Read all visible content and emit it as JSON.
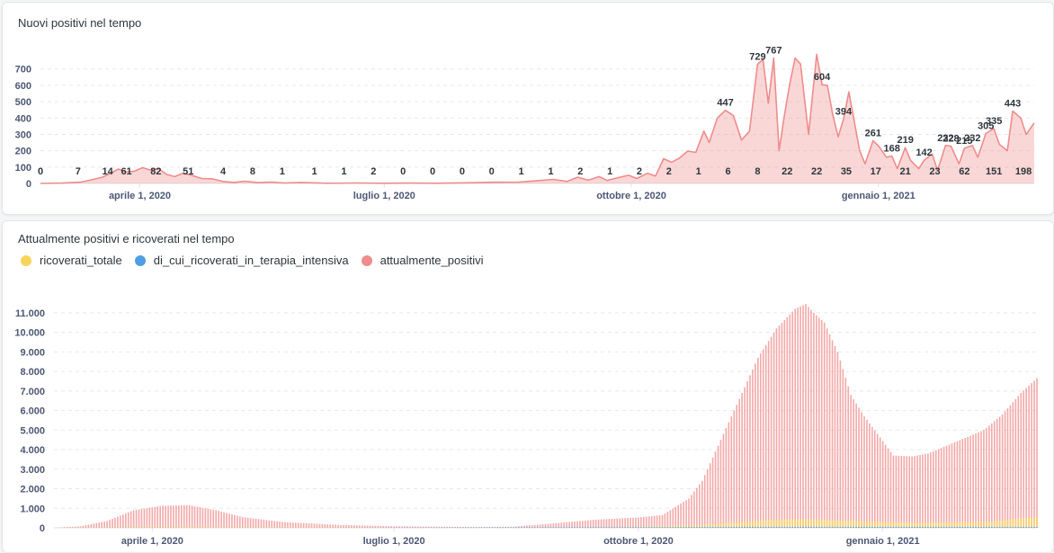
{
  "cards": [
    {
      "title": "Nuovi positivi nel tempo"
    },
    {
      "title": "Attualmente positivi e ricoverati nel tempo"
    }
  ],
  "colors": {
    "attualmente_positivi": "#ef8c8c",
    "ricoverati_totale": "#f9d45c",
    "di_cui_ricoverati_in_terapia_intensiva": "#509ee3",
    "grid": "#e6e8eb",
    "tick": "#4c5773"
  },
  "chart_data": [
    {
      "type": "area",
      "title": "Nuovi positivi nel tempo",
      "x_axis": {
        "type": "date",
        "range": [
          "2020-02-24",
          "2021-02-28"
        ],
        "ticks": [
          {
            "date": "2020-04-01",
            "label": "aprile 1, 2020"
          },
          {
            "date": "2020-07-01",
            "label": "luglio 1, 2020"
          },
          {
            "date": "2020-10-01",
            "label": "ottobre 1, 2020"
          },
          {
            "date": "2021-01-01",
            "label": "gennaio 1, 2021"
          }
        ]
      },
      "y_axis": {
        "range": [
          0,
          770
        ],
        "ticks": [
          0,
          100,
          200,
          300,
          400,
          500,
          600,
          700
        ]
      },
      "grid": "horizontal dashed",
      "series": [
        {
          "name": "nuovi_positivi",
          "color": "#ef8c8c",
          "points": [
            [
              "2020-02-24",
              0
            ],
            [
              "2020-03-03",
              2
            ],
            [
              "2020-03-10",
              8
            ],
            [
              "2020-03-14",
              22
            ],
            [
              "2020-03-18",
              38
            ],
            [
              "2020-03-21",
              61
            ],
            [
              "2020-03-24",
              88
            ],
            [
              "2020-03-27",
              70
            ],
            [
              "2020-03-30",
              75
            ],
            [
              "2020-04-02",
              96
            ],
            [
              "2020-04-05",
              82
            ],
            [
              "2020-04-08",
              90
            ],
            [
              "2020-04-11",
              55
            ],
            [
              "2020-04-14",
              42
            ],
            [
              "2020-04-17",
              62
            ],
            [
              "2020-04-20",
              51
            ],
            [
              "2020-04-24",
              30
            ],
            [
              "2020-04-28",
              28
            ],
            [
              "2020-05-02",
              12
            ],
            [
              "2020-05-06",
              6
            ],
            [
              "2020-05-10",
              14
            ],
            [
              "2020-05-15",
              5
            ],
            [
              "2020-05-20",
              8
            ],
            [
              "2020-05-25",
              3
            ],
            [
              "2020-05-31",
              6
            ],
            [
              "2020-06-10",
              1
            ],
            [
              "2020-06-20",
              3
            ],
            [
              "2020-07-01",
              1
            ],
            [
              "2020-07-10",
              2
            ],
            [
              "2020-07-20",
              1
            ],
            [
              "2020-08-01",
              4
            ],
            [
              "2020-08-10",
              7
            ],
            [
              "2020-08-20",
              8
            ],
            [
              "2020-08-28",
              18
            ],
            [
              "2020-09-02",
              25
            ],
            [
              "2020-09-07",
              12
            ],
            [
              "2020-09-11",
              38
            ],
            [
              "2020-09-15",
              20
            ],
            [
              "2020-09-19",
              42
            ],
            [
              "2020-09-22",
              18
            ],
            [
              "2020-09-26",
              35
            ],
            [
              "2020-09-30",
              50
            ],
            [
              "2020-10-03",
              30
            ],
            [
              "2020-10-07",
              62
            ],
            [
              "2020-10-10",
              45
            ],
            [
              "2020-10-13",
              151
            ],
            [
              "2020-10-16",
              130
            ],
            [
              "2020-10-19",
              156
            ],
            [
              "2020-10-22",
              198
            ],
            [
              "2020-10-25",
              190
            ],
            [
              "2020-10-28",
              320
            ],
            [
              "2020-10-30",
              250
            ],
            [
              "2020-11-02",
              400
            ],
            [
              "2020-11-05",
              447
            ],
            [
              "2020-11-08",
              415
            ],
            [
              "2020-11-11",
              265
            ],
            [
              "2020-11-14",
              320
            ],
            [
              "2020-11-17",
              729
            ],
            [
              "2020-11-19",
              760
            ],
            [
              "2020-11-21",
              490
            ],
            [
              "2020-11-23",
              767
            ],
            [
              "2020-11-25",
              200
            ],
            [
              "2020-11-27",
              420
            ],
            [
              "2020-11-29",
              610
            ],
            [
              "2020-12-01",
              767
            ],
            [
              "2020-12-03",
              730
            ],
            [
              "2020-12-06",
              300
            ],
            [
              "2020-12-09",
              790
            ],
            [
              "2020-12-11",
              604
            ],
            [
              "2020-12-13",
              600
            ],
            [
              "2020-12-15",
              420
            ],
            [
              "2020-12-17",
              285
            ],
            [
              "2020-12-19",
              394
            ],
            [
              "2020-12-21",
              560
            ],
            [
              "2020-12-23",
              380
            ],
            [
              "2020-12-25",
              200
            ],
            [
              "2020-12-27",
              120
            ],
            [
              "2020-12-30",
              261
            ],
            [
              "2021-01-01",
              230
            ],
            [
              "2021-01-04",
              160
            ],
            [
              "2021-01-06",
              168
            ],
            [
              "2021-01-08",
              90
            ],
            [
              "2021-01-11",
              219
            ],
            [
              "2021-01-13",
              140
            ],
            [
              "2021-01-16",
              90
            ],
            [
              "2021-01-18",
              142
            ],
            [
              "2021-01-21",
              180
            ],
            [
              "2021-01-23",
              80
            ],
            [
              "2021-01-26",
              232
            ],
            [
              "2021-01-28",
              228
            ],
            [
              "2021-01-31",
              120
            ],
            [
              "2021-02-02",
              215
            ],
            [
              "2021-02-05",
              232
            ],
            [
              "2021-02-07",
              160
            ],
            [
              "2021-02-10",
              305
            ],
            [
              "2021-02-13",
              335
            ],
            [
              "2021-02-15",
              240
            ],
            [
              "2021-02-18",
              200
            ],
            [
              "2021-02-20",
              443
            ],
            [
              "2021-02-23",
              400
            ],
            [
              "2021-02-25",
              300
            ],
            [
              "2021-02-28",
              370
            ]
          ]
        }
      ],
      "data_labels": [
        {
          "date": "2020-02-24",
          "label": "0"
        },
        {
          "date": "2020-03-09",
          "label": "7"
        },
        {
          "date": "2020-03-20",
          "label": "14"
        },
        {
          "date": "2020-03-27",
          "label": "61"
        },
        {
          "date": "2020-04-07",
          "label": "82"
        },
        {
          "date": "2020-04-19",
          "label": "51"
        },
        {
          "date": "2020-05-02",
          "label": "4"
        },
        {
          "date": "2020-05-13",
          "label": "8"
        },
        {
          "date": "2020-05-24",
          "label": "1"
        },
        {
          "date": "2020-06-05",
          "label": "1"
        },
        {
          "date": "2020-06-16",
          "label": "1"
        },
        {
          "date": "2020-06-27",
          "label": "2"
        },
        {
          "date": "2020-07-08",
          "label": "0"
        },
        {
          "date": "2020-07-19",
          "label": "0"
        },
        {
          "date": "2020-07-30",
          "label": "0"
        },
        {
          "date": "2020-08-10",
          "label": "0"
        },
        {
          "date": "2020-08-21",
          "label": "1"
        },
        {
          "date": "2020-09-01",
          "label": "1"
        },
        {
          "date": "2020-09-12",
          "label": "2"
        },
        {
          "date": "2020-09-23",
          "label": "1"
        },
        {
          "date": "2020-10-04",
          "label": "2"
        },
        {
          "date": "2020-10-15",
          "label": "2"
        },
        {
          "date": "2020-10-26",
          "label": "1"
        },
        {
          "date": "2020-11-06",
          "label": "6"
        },
        {
          "date": "2020-11-17",
          "label": "8"
        },
        {
          "date": "2020-11-28",
          "label": "22"
        },
        {
          "date": "2020-12-09",
          "label": "22"
        },
        {
          "date": "2020-12-20",
          "label": "35"
        },
        {
          "date": "2020-12-31",
          "label": "17"
        },
        {
          "date": "2021-01-11",
          "label": "21"
        },
        {
          "date": "2021-01-22",
          "label": "23"
        },
        {
          "date": "2021-02-02",
          "label": "62"
        },
        {
          "date": "2021-02-13",
          "label": "151"
        },
        {
          "date": "2021-02-24",
          "label": "198"
        }
      ],
      "peak_labels": [
        {
          "date": "2020-11-05",
          "value": 447
        },
        {
          "date": "2020-11-17",
          "value": 729
        },
        {
          "date": "2020-11-23",
          "value": 767
        },
        {
          "date": "2020-12-11",
          "value": 604
        },
        {
          "date": "2020-12-19",
          "value": 394
        },
        {
          "date": "2020-12-30",
          "value": 261
        },
        {
          "date": "2021-01-06",
          "value": 168
        },
        {
          "date": "2021-01-11",
          "value": 219
        },
        {
          "date": "2021-01-18",
          "value": 142
        },
        {
          "date": "2021-01-26",
          "value": 232
        },
        {
          "date": "2021-01-28",
          "value": 228
        },
        {
          "date": "2021-02-02",
          "value": 215
        },
        {
          "date": "2021-02-05",
          "value": 232
        },
        {
          "date": "2021-02-10",
          "value": 305
        },
        {
          "date": "2021-02-13",
          "value": 335
        },
        {
          "date": "2021-02-20",
          "value": 443
        }
      ]
    },
    {
      "type": "bar",
      "title": "Attualmente positivi e ricoverati nel tempo",
      "legend": {
        "placement": "top-left",
        "entries": [
          "ricoverati_totale",
          "di_cui_ricoverati_in_terapia_intensiva",
          "attualmente_positivi"
        ]
      },
      "x_axis": {
        "type": "date",
        "range": [
          "2020-02-24",
          "2021-02-28"
        ],
        "ticks": [
          {
            "date": "2020-04-01",
            "label": "aprile 1, 2020"
          },
          {
            "date": "2020-07-01",
            "label": "luglio 1, 2020"
          },
          {
            "date": "2020-10-01",
            "label": "ottobre 1, 2020"
          },
          {
            "date": "2021-01-01",
            "label": "gennaio 1, 2021"
          }
        ]
      },
      "y_axis": {
        "range": [
          0,
          11500
        ],
        "ticks": [
          {
            "value": 0,
            "label": "0"
          },
          {
            "value": 1000,
            "label": "1.000"
          },
          {
            "value": 2000,
            "label": "2.000"
          },
          {
            "value": 3000,
            "label": "3.000"
          },
          {
            "value": 4000,
            "label": "4.000"
          },
          {
            "value": 5000,
            "label": "5.000"
          },
          {
            "value": 6000,
            "label": "6.000"
          },
          {
            "value": 7000,
            "label": "7.000"
          },
          {
            "value": 8000,
            "label": "8.000"
          },
          {
            "value": 9000,
            "label": "9.000"
          },
          {
            "value": 10000,
            "label": "10.000"
          },
          {
            "value": 11000,
            "label": "11.000"
          }
        ]
      },
      "grid": "horizontal dashed",
      "series": [
        {
          "name": "attualmente_positivi",
          "color": "#ef8c8c",
          "points": [
            [
              "2020-02-24",
              0
            ],
            [
              "2020-03-05",
              80
            ],
            [
              "2020-03-15",
              350
            ],
            [
              "2020-03-25",
              900
            ],
            [
              "2020-04-05",
              1130
            ],
            [
              "2020-04-15",
              1150
            ],
            [
              "2020-04-25",
              900
            ],
            [
              "2020-05-05",
              550
            ],
            [
              "2020-05-20",
              300
            ],
            [
              "2020-06-10",
              150
            ],
            [
              "2020-07-01",
              80
            ],
            [
              "2020-08-01",
              40
            ],
            [
              "2020-08-15",
              60
            ],
            [
              "2020-09-01",
              250
            ],
            [
              "2020-09-15",
              420
            ],
            [
              "2020-09-30",
              520
            ],
            [
              "2020-10-10",
              650
            ],
            [
              "2020-10-20",
              1500
            ],
            [
              "2020-10-25",
              2400
            ],
            [
              "2020-11-01",
              4500
            ],
            [
              "2020-11-08",
              6600
            ],
            [
              "2020-11-15",
              8700
            ],
            [
              "2020-11-22",
              10200
            ],
            [
              "2020-11-29",
              11200
            ],
            [
              "2020-12-03",
              11450
            ],
            [
              "2020-12-06",
              11000
            ],
            [
              "2020-12-10",
              10500
            ],
            [
              "2020-12-15",
              9000
            ],
            [
              "2020-12-20",
              6800
            ],
            [
              "2020-12-25",
              5700
            ],
            [
              "2020-12-30",
              4800
            ],
            [
              "2021-01-05",
              3700
            ],
            [
              "2021-01-12",
              3650
            ],
            [
              "2021-01-18",
              3800
            ],
            [
              "2021-01-25",
              4200
            ],
            [
              "2021-02-01",
              4600
            ],
            [
              "2021-02-08",
              5000
            ],
            [
              "2021-02-15",
              5800
            ],
            [
              "2021-02-22",
              6900
            ],
            [
              "2021-02-28",
              7650
            ]
          ]
        },
        {
          "name": "ricoverati_totale",
          "color": "#f9d45c",
          "points": [
            [
              "2020-02-24",
              0
            ],
            [
              "2020-03-15",
              20
            ],
            [
              "2020-04-05",
              60
            ],
            [
              "2020-05-01",
              30
            ],
            [
              "2020-07-01",
              5
            ],
            [
              "2020-09-15",
              20
            ],
            [
              "2020-10-25",
              150
            ],
            [
              "2020-11-20",
              420
            ],
            [
              "2020-12-03",
              450
            ],
            [
              "2020-12-25",
              330
            ],
            [
              "2021-01-15",
              260
            ],
            [
              "2021-02-10",
              320
            ],
            [
              "2021-02-28",
              560
            ]
          ]
        },
        {
          "name": "di_cui_ricoverati_in_terapia_intensiva",
          "color": "#509ee3",
          "points": [
            [
              "2020-02-24",
              0
            ],
            [
              "2020-04-01",
              8
            ],
            [
              "2020-06-01",
              1
            ],
            [
              "2020-11-25",
              50
            ],
            [
              "2021-02-28",
              45
            ]
          ]
        }
      ]
    }
  ]
}
